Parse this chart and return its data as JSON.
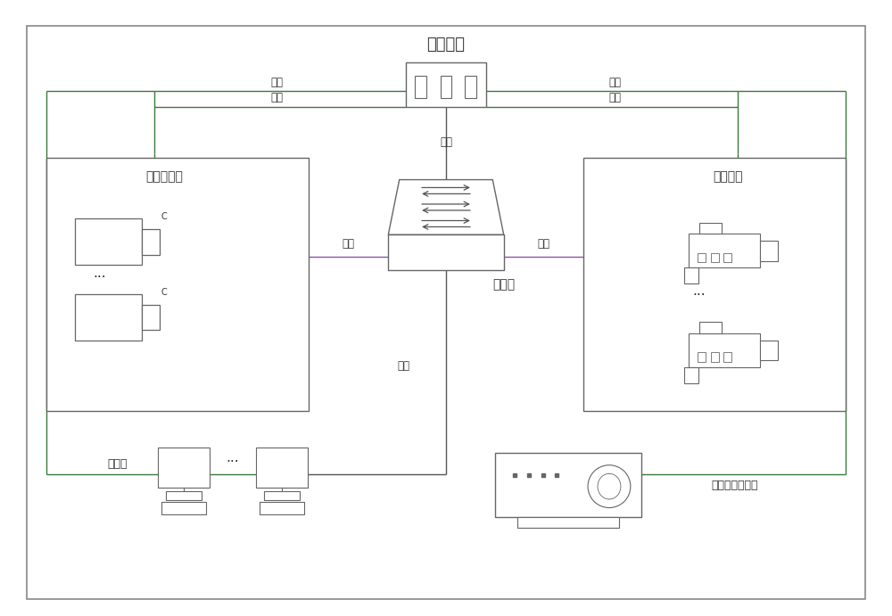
{
  "title": "交流电源",
  "bg_color": "#ffffff",
  "line_color_dark": "#555555",
  "line_color_green": "#3a7a3a",
  "line_color_purple": "#8855aa",
  "text_color": "#333333",
  "box_edge": "#666666",
  "fig_width": 10.0,
  "fig_height": 6.91,
  "outer_border": "#888888",
  "camera_label_left": "网络摄像机",
  "camera_label_right": "网络枪机",
  "switch_label": "交换机",
  "client_label": "客户端",
  "nvr_label": "网络硬盘录像机",
  "power_label": "电源",
  "network_label": "网络"
}
